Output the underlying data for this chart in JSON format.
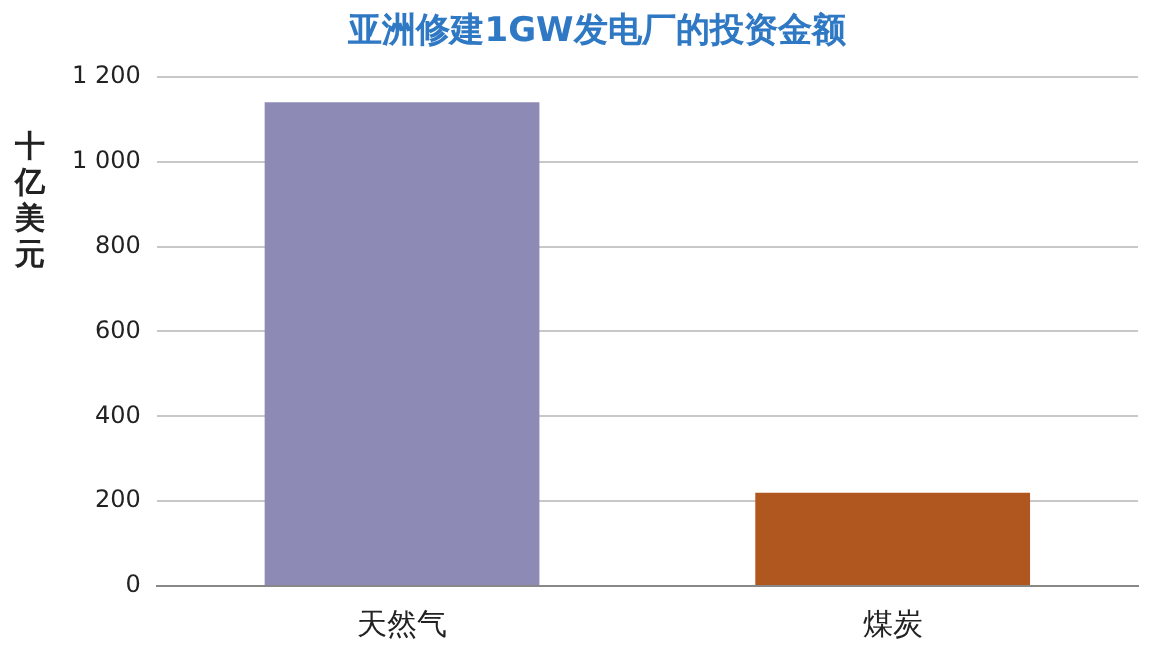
{
  "chart_data": {
    "type": "bar",
    "title": "亚洲修建1GW发电厂的投资金额",
    "ylabel": "十亿美元",
    "categories": [
      "天然气",
      "煤炭"
    ],
    "values": [
      1140,
      220
    ],
    "colors": [
      "#8e8ab6",
      "#b0561f"
    ],
    "ylim": [
      0,
      1200
    ],
    "yticks": [
      0,
      200,
      400,
      600,
      800,
      {
        "value": 1000,
        "label": "1 000"
      },
      {
        "value": 1200,
        "label": "1 200"
      }
    ],
    "grid": "y"
  }
}
